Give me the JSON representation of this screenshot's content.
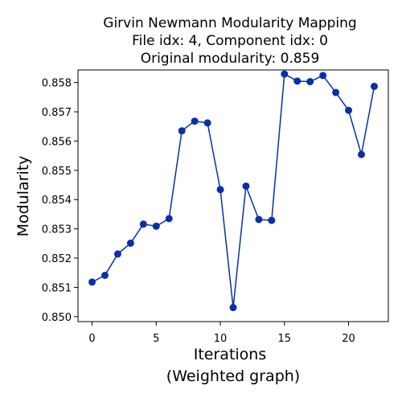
{
  "chart_data": {
    "type": "line",
    "title_lines": [
      "Girvin Newmann Modularity Mapping",
      "File idx: 4, Component idx: 0",
      "Original modularity: 0.859"
    ],
    "xlabel_lines": [
      "Iterations",
      "(Weighted graph)"
    ],
    "ylabel": "Modularity",
    "xlim": [
      -1.1,
      23.1
    ],
    "ylim": [
      0.84983,
      0.85843
    ],
    "x_ticks": [
      0,
      5,
      10,
      15,
      20
    ],
    "y_ticks": [
      0.85,
      0.851,
      0.852,
      0.853,
      0.854,
      0.855,
      0.856,
      0.857,
      0.858
    ],
    "y_tick_labels": [
      "0.850",
      "0.851",
      "0.852",
      "0.853",
      "0.854",
      "0.855",
      "0.856",
      "0.857",
      "0.858"
    ],
    "grid": false,
    "color": "#0a2fa8",
    "series": [
      {
        "x": [
          0,
          1,
          2,
          3,
          4,
          5,
          6,
          7,
          8,
          9,
          10,
          11,
          12,
          13,
          14,
          15,
          16,
          17,
          18,
          19,
          20,
          21,
          22
        ],
        "values": [
          0.85118,
          0.85141,
          0.85214,
          0.85251,
          0.85316,
          0.85309,
          0.85335,
          0.85635,
          0.85668,
          0.85662,
          0.85434,
          0.85031,
          0.85446,
          0.85332,
          0.85329,
          0.85829,
          0.85805,
          0.85803,
          0.85824,
          0.85766,
          0.85705,
          0.85554,
          0.85787
        ]
      }
    ]
  }
}
